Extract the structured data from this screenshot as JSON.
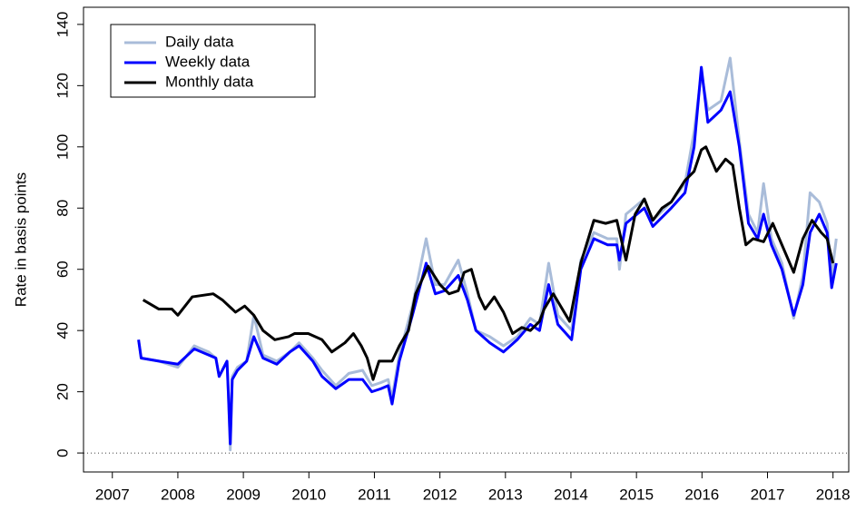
{
  "chart_data": {
    "type": "line",
    "ylabel": "Rate in basis points",
    "xlim": [
      2006.56,
      2018.24
    ],
    "ylim": [
      -6.2,
      145.6
    ],
    "xticks": [
      2007,
      2008,
      2009,
      2010,
      2011,
      2012,
      2013,
      2014,
      2015,
      2016,
      2017,
      2018
    ],
    "yticks": [
      0,
      20,
      40,
      60,
      80,
      100,
      120,
      140
    ],
    "reference_line": 0,
    "legend": "top-left",
    "grid": false,
    "series": [
      {
        "name": "Daily data",
        "color": "#a9bcd9",
        "x": [
          2007.4,
          2007.44,
          2007.71,
          2008.0,
          2008.25,
          2008.47,
          2008.58,
          2008.63,
          2008.75,
          2008.77,
          2008.8,
          2008.83,
          2008.91,
          2009.05,
          2009.16,
          2009.3,
          2009.51,
          2009.71,
          2009.85,
          2010.06,
          2010.2,
          2010.41,
          2010.61,
          2010.82,
          2010.96,
          2011.1,
          2011.21,
          2011.27,
          2011.38,
          2011.58,
          2011.79,
          2011.93,
          2012.07,
          2012.28,
          2012.42,
          2012.55,
          2012.76,
          2012.97,
          2013.18,
          2013.38,
          2013.52,
          2013.66,
          2013.8,
          2014.01,
          2014.15,
          2014.35,
          2014.56,
          2014.7,
          2014.74,
          2014.84,
          2015.12,
          2015.25,
          2015.53,
          2015.74,
          2015.88,
          2015.99,
          2016.09,
          2016.29,
          2016.43,
          2016.57,
          2016.71,
          2016.85,
          2016.94,
          2017.06,
          2017.22,
          2017.4,
          2017.54,
          2017.65,
          2017.79,
          2017.91,
          2017.98,
          2018.05
        ],
        "values": [
          37,
          31,
          30,
          28,
          35,
          33,
          31,
          25,
          30,
          20,
          1,
          25,
          28,
          30,
          45,
          32,
          30,
          33,
          36,
          31,
          27,
          22,
          26,
          27,
          22,
          23,
          24,
          18,
          32,
          48,
          70,
          55,
          55,
          63,
          52,
          40,
          38,
          35,
          38,
          44,
          42,
          62,
          45,
          40,
          63,
          72,
          70,
          70,
          60,
          78,
          83,
          76,
          82,
          88,
          105,
          124,
          112,
          115,
          129,
          102,
          78,
          72,
          88,
          70,
          62,
          44,
          58,
          85,
          82,
          75,
          58,
          70
        ]
      },
      {
        "name": "Weekly data",
        "color": "#0000ff",
        "x": [
          2007.4,
          2007.44,
          2007.71,
          2008.0,
          2008.25,
          2008.47,
          2008.58,
          2008.63,
          2008.75,
          2008.77,
          2008.8,
          2008.83,
          2008.91,
          2009.05,
          2009.16,
          2009.3,
          2009.51,
          2009.71,
          2009.85,
          2010.06,
          2010.2,
          2010.41,
          2010.61,
          2010.82,
          2010.96,
          2011.1,
          2011.21,
          2011.27,
          2011.38,
          2011.58,
          2011.79,
          2011.93,
          2012.07,
          2012.28,
          2012.42,
          2012.55,
          2012.76,
          2012.97,
          2013.18,
          2013.38,
          2013.52,
          2013.66,
          2013.8,
          2014.01,
          2014.15,
          2014.35,
          2014.56,
          2014.7,
          2014.74,
          2014.84,
          2015.12,
          2015.25,
          2015.53,
          2015.74,
          2015.88,
          2015.99,
          2016.09,
          2016.29,
          2016.43,
          2016.57,
          2016.71,
          2016.85,
          2016.94,
          2017.06,
          2017.22,
          2017.4,
          2017.54,
          2017.65,
          2017.79,
          2017.91,
          2017.98,
          2018.05
        ],
        "values": [
          37,
          31,
          30,
          29,
          34,
          32,
          31,
          25,
          30,
          20,
          3,
          24,
          27,
          30,
          38,
          31,
          29,
          33,
          35,
          30,
          25,
          21,
          24,
          24,
          20,
          21,
          22,
          16,
          30,
          45,
          62,
          52,
          53,
          58,
          50,
          40,
          36,
          33,
          37,
          42,
          40,
          55,
          42,
          37,
          60,
          70,
          68,
          68,
          63,
          75,
          80,
          74,
          80,
          85,
          100,
          126,
          108,
          112,
          118,
          100,
          75,
          70,
          78,
          68,
          60,
          45,
          55,
          72,
          78,
          72,
          54,
          62
        ]
      },
      {
        "name": "Monthly data",
        "color": "#000000",
        "x": [
          2007.47,
          2007.71,
          2007.91,
          2008.0,
          2008.22,
          2008.54,
          2008.68,
          2008.88,
          2009.02,
          2009.16,
          2009.3,
          2009.48,
          2009.69,
          2009.78,
          2009.99,
          2010.2,
          2010.35,
          2010.55,
          2010.68,
          2010.8,
          2010.89,
          2010.98,
          2011.07,
          2011.27,
          2011.38,
          2011.52,
          2011.63,
          2011.82,
          2012.0,
          2012.14,
          2012.28,
          2012.37,
          2012.48,
          2012.6,
          2012.69,
          2012.83,
          2012.97,
          2013.11,
          2013.25,
          2013.38,
          2013.52,
          2013.59,
          2013.73,
          2013.98,
          2014.15,
          2014.35,
          2014.53,
          2014.7,
          2014.84,
          2014.98,
          2015.12,
          2015.25,
          2015.39,
          2015.53,
          2015.74,
          2015.88,
          2015.99,
          2016.06,
          2016.22,
          2016.36,
          2016.47,
          2016.57,
          2016.67,
          2016.78,
          2016.94,
          2017.08,
          2017.22,
          2017.4,
          2017.54,
          2017.68,
          2017.82,
          2017.91,
          2018.0
        ],
        "values": [
          50,
          47,
          47,
          45,
          51,
          52,
          50,
          46,
          48,
          45,
          40,
          37,
          38,
          39,
          39,
          37,
          33,
          36,
          39,
          35,
          31,
          24,
          30,
          30,
          35,
          40,
          52,
          61,
          55,
          52,
          53,
          59,
          60,
          51,
          47,
          51,
          46,
          39,
          41,
          40,
          43,
          47,
          52,
          43,
          62,
          76,
          75,
          76,
          63,
          78,
          83,
          76,
          80,
          82,
          89,
          92,
          99,
          100,
          92,
          96,
          94,
          80,
          68,
          70,
          69,
          75,
          68,
          59,
          70,
          76,
          72,
          70,
          62
        ]
      }
    ]
  }
}
